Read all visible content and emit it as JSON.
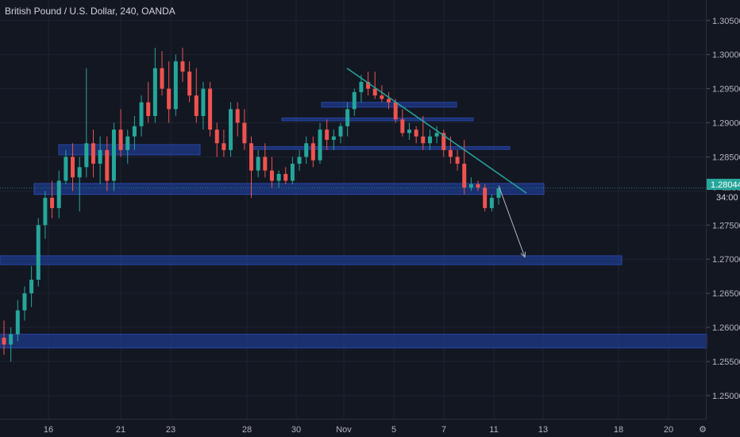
{
  "header": {
    "title": "British Pound / U.S. Dollar, 240, OANDA"
  },
  "price_badge": {
    "price": "1.28044",
    "countdown": "34:00",
    "color": "#26a69a"
  },
  "colors": {
    "background": "#131722",
    "grid": "#1f2330",
    "up": "#26a69a",
    "down": "#ef5350",
    "zone": "#1e3a8a",
    "trendline": "#26a69a",
    "projection": "#b2b5be"
  },
  "chart_data": {
    "type": "candlestick",
    "instrument": "British Pound / U.S. Dollar",
    "timeframe": "240",
    "source": "OANDA",
    "y_axis": {
      "range": [
        1.2465,
        1.308
      ],
      "ticks": [
        "1.30500",
        "1.30000",
        "1.29500",
        "1.29000",
        "1.28500",
        "1.28000",
        "1.27500",
        "1.27000",
        "1.26500",
        "1.26000",
        "1.25500",
        "1.25000"
      ]
    },
    "x_axis": {
      "range": [
        0,
        932
      ],
      "ticks": [
        {
          "label": "16",
          "x": 61
        },
        {
          "label": "21",
          "x": 152
        },
        {
          "label": "23",
          "x": 215
        },
        {
          "label": "28",
          "x": 311
        },
        {
          "label": "30",
          "x": 373
        },
        {
          "label": "Nov",
          "x": 433
        },
        {
          "label": "5",
          "x": 496
        },
        {
          "label": "7",
          "x": 559
        },
        {
          "label": "11",
          "x": 622
        },
        {
          "label": "13",
          "x": 684
        },
        {
          "label": "18",
          "x": 779
        },
        {
          "label": "20",
          "x": 842
        }
      ]
    },
    "candles_ohlc": [
      [
        1.2585,
        1.261,
        1.256,
        1.2575
      ],
      [
        1.2575,
        1.26,
        1.255,
        1.259
      ],
      [
        1.259,
        1.264,
        1.258,
        1.2625
      ],
      [
        1.2625,
        1.266,
        1.261,
        1.265
      ],
      [
        1.265,
        1.269,
        1.263,
        1.267
      ],
      [
        1.267,
        1.276,
        1.266,
        1.275
      ],
      [
        1.275,
        1.28,
        1.273,
        1.279
      ],
      [
        1.279,
        1.2815,
        1.276,
        1.2775
      ],
      [
        1.2775,
        1.283,
        1.276,
        1.2815
      ],
      [
        1.2815,
        1.286,
        1.281,
        1.285
      ],
      [
        1.285,
        1.287,
        1.28,
        1.282
      ],
      [
        1.282,
        1.285,
        1.277,
        1.2835
      ],
      [
        1.2835,
        1.298,
        1.282,
        1.287
      ],
      [
        1.287,
        1.289,
        1.282,
        1.284
      ],
      [
        1.284,
        1.288,
        1.281,
        1.286
      ],
      [
        1.286,
        1.288,
        1.28,
        1.2815
      ],
      [
        1.2815,
        1.29,
        1.28,
        1.289
      ],
      [
        1.289,
        1.292,
        1.285,
        1.286
      ],
      [
        1.286,
        1.289,
        1.284,
        1.288
      ],
      [
        1.288,
        1.291,
        1.286,
        1.2895
      ],
      [
        1.2895,
        1.294,
        1.288,
        1.293
      ],
      [
        1.293,
        1.296,
        1.29,
        1.291
      ],
      [
        1.291,
        1.301,
        1.29,
        1.298
      ],
      [
        1.298,
        1.3005,
        1.294,
        1.295
      ],
      [
        1.295,
        1.299,
        1.29,
        1.292
      ],
      [
        1.292,
        1.3,
        1.291,
        1.299
      ],
      [
        1.299,
        1.301,
        1.296,
        1.2975
      ],
      [
        1.2975,
        1.299,
        1.293,
        1.294
      ],
      [
        1.294,
        1.298,
        1.29,
        1.291
      ],
      [
        1.291,
        1.296,
        1.289,
        1.295
      ],
      [
        1.295,
        1.296,
        1.288,
        1.289
      ],
      [
        1.289,
        1.29,
        1.285,
        1.287
      ],
      [
        1.287,
        1.289,
        1.285,
        1.286
      ],
      [
        1.286,
        1.293,
        1.285,
        1.292
      ],
      [
        1.292,
        1.293,
        1.288,
        1.29
      ],
      [
        1.29,
        1.292,
        1.286,
        1.287
      ],
      [
        1.287,
        1.288,
        1.279,
        1.283
      ],
      [
        1.283,
        1.286,
        1.282,
        1.285
      ],
      [
        1.285,
        1.287,
        1.282,
        1.283
      ],
      [
        1.283,
        1.285,
        1.2805,
        1.2815
      ],
      [
        1.2815,
        1.283,
        1.2805,
        1.2825
      ],
      [
        1.2825,
        1.2835,
        1.281,
        1.2815
      ],
      [
        1.2815,
        1.285,
        1.281,
        1.284
      ],
      [
        1.284,
        1.286,
        1.283,
        1.285
      ],
      [
        1.285,
        1.288,
        1.284,
        1.287
      ],
      [
        1.287,
        1.288,
        1.2835,
        1.2845
      ],
      [
        1.2845,
        1.29,
        1.284,
        1.289
      ],
      [
        1.289,
        1.2905,
        1.286,
        1.2875
      ],
      [
        1.2875,
        1.289,
        1.286,
        1.288
      ],
      [
        1.288,
        1.29,
        1.287,
        1.2895
      ],
      [
        1.2895,
        1.293,
        1.288,
        1.292
      ],
      [
        1.292,
        1.295,
        1.291,
        1.2945
      ],
      [
        1.2945,
        1.297,
        1.293,
        1.296
      ],
      [
        1.296,
        1.2975,
        1.294,
        1.295
      ],
      [
        1.295,
        1.2975,
        1.2935,
        1.294
      ],
      [
        1.294,
        1.2955,
        1.293,
        1.2935
      ],
      [
        1.2935,
        1.2945,
        1.292,
        1.293
      ],
      [
        1.293,
        1.2935,
        1.29,
        1.2905
      ],
      [
        1.2905,
        1.292,
        1.288,
        1.2885
      ],
      [
        1.2885,
        1.29,
        1.2875,
        1.289
      ],
      [
        1.289,
        1.2895,
        1.287,
        1.288
      ],
      [
        1.288,
        1.291,
        1.286,
        1.287
      ],
      [
        1.287,
        1.289,
        1.286,
        1.288
      ],
      [
        1.288,
        1.2895,
        1.287,
        1.2885
      ],
      [
        1.2885,
        1.289,
        1.285,
        1.286
      ],
      [
        1.286,
        1.288,
        1.284,
        1.285
      ],
      [
        1.285,
        1.286,
        1.283,
        1.284
      ],
      [
        1.284,
        1.2875,
        1.2795,
        1.2805
      ],
      [
        1.2805,
        1.282,
        1.28,
        1.281
      ],
      [
        1.281,
        1.2815,
        1.28,
        1.2805
      ],
      [
        1.2805,
        1.281,
        1.277,
        1.2775
      ],
      [
        1.2775,
        1.2795,
        1.277,
        1.279
      ],
      [
        1.279,
        1.2805,
        1.278,
        1.2804
      ]
    ],
    "zones": [
      {
        "x1": 43,
        "x2": 685,
        "y1": 1.2811,
        "y2": 1.2795
      },
      {
        "x1": 74,
        "x2": 252,
        "y1": 1.2868,
        "y2": 1.2853
      },
      {
        "x1": 0,
        "x2": 783,
        "y1": 1.2705,
        "y2": 1.2692
      },
      {
        "x1": 0,
        "x2": 890,
        "y1": 1.259,
        "y2": 1.257
      },
      {
        "x1": 320,
        "x2": 642,
        "y1": 1.2865,
        "y2": 1.2861
      },
      {
        "x1": 355,
        "x2": 596,
        "y1": 1.2907,
        "y2": 1.2903
      },
      {
        "x1": 405,
        "x2": 575,
        "y1": 1.293,
        "y2": 1.2923
      }
    ],
    "trendline": {
      "x1": 437,
      "y1": 1.298,
      "x2": 663,
      "y2": 1.2797
    },
    "projection": {
      "x1": 628,
      "y1": 1.2808,
      "x2": 661,
      "y2": 1.2703
    }
  }
}
